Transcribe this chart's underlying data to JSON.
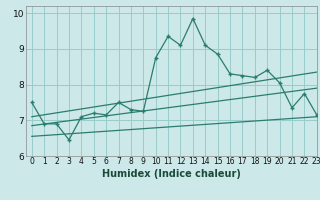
{
  "xlabel": "Humidex (Indice chaleur)",
  "bg_color": "#cce8e8",
  "grid_color": "#99cccc",
  "line_color": "#2a7d6e",
  "xlim": [
    -0.5,
    23
  ],
  "ylim": [
    6,
    10.2
  ],
  "yticks": [
    6,
    7,
    8,
    9,
    10
  ],
  "xticks": [
    0,
    1,
    2,
    3,
    4,
    5,
    6,
    7,
    8,
    9,
    10,
    11,
    12,
    13,
    14,
    15,
    16,
    17,
    18,
    19,
    20,
    21,
    22,
    23
  ],
  "main_line": {
    "x": [
      0,
      1,
      2,
      3,
      4,
      5,
      6,
      7,
      8,
      9,
      10,
      11,
      12,
      13,
      14,
      15,
      16,
      17,
      18,
      19,
      20,
      21,
      22,
      23
    ],
    "y": [
      7.5,
      6.9,
      6.9,
      6.45,
      7.1,
      7.2,
      7.15,
      7.5,
      7.3,
      7.25,
      8.75,
      9.35,
      9.1,
      9.85,
      9.1,
      8.85,
      8.3,
      8.25,
      8.2,
      8.4,
      8.05,
      7.35,
      7.75,
      7.15
    ]
  },
  "trend_upper": {
    "x": [
      0,
      23
    ],
    "y": [
      7.1,
      8.35
    ]
  },
  "trend_lower": {
    "x": [
      0,
      23
    ],
    "y": [
      6.55,
      7.1
    ]
  },
  "trend_mid": {
    "x": [
      0,
      23
    ],
    "y": [
      6.85,
      7.9
    ]
  },
  "xlabel_fontsize": 7,
  "tick_fontsize": 6.5
}
